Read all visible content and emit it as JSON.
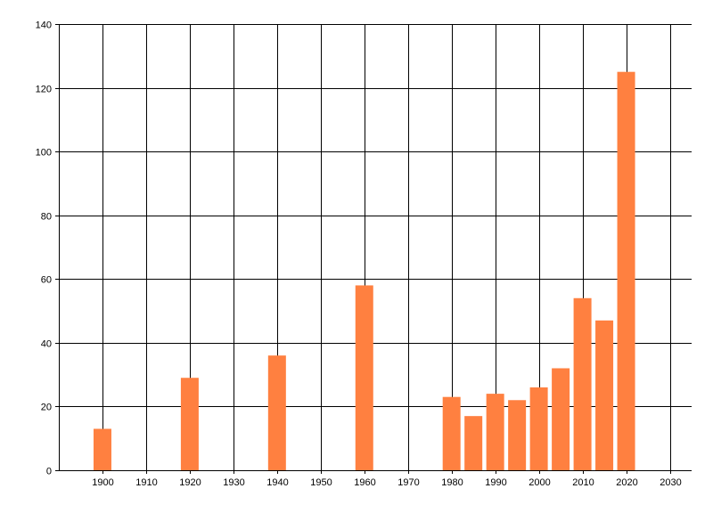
{
  "chart_data": {
    "type": "bar",
    "title": "",
    "xlabel": "",
    "ylabel": "",
    "x": [
      1900,
      1920,
      1940,
      1960,
      1980,
      1985,
      1990,
      1995,
      2000,
      2005,
      2010,
      2015,
      2020
    ],
    "values": [
      13,
      29,
      36,
      58,
      23,
      17,
      24,
      22,
      26,
      32,
      54,
      47,
      125
    ],
    "xlim": [
      1890,
      2035
    ],
    "ylim": [
      0,
      140
    ],
    "xticks": [
      1900,
      1910,
      1920,
      1930,
      1940,
      1950,
      1960,
      1970,
      1980,
      1990,
      2000,
      2010,
      2020,
      2030
    ],
    "yticks": [
      0,
      20,
      40,
      60,
      80,
      100,
      120,
      140
    ],
    "grid": true,
    "bar_color": "#FF8040",
    "grid_color": "#000000"
  }
}
